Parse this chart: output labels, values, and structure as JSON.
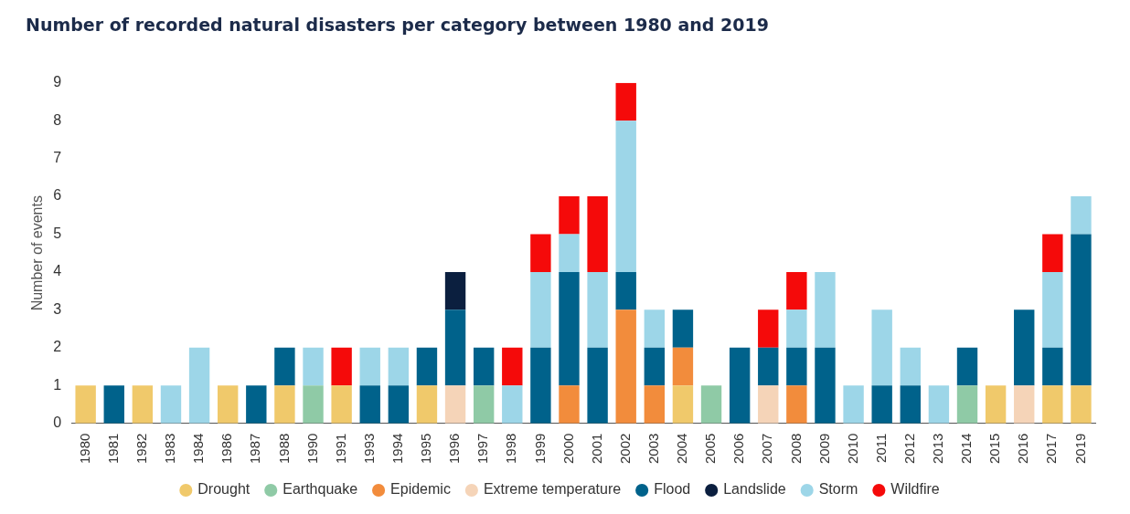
{
  "chart_data": {
    "type": "bar",
    "title": "Number of recorded natural disasters per category between 1980 and 2019",
    "ylabel": "Number of events",
    "stacked": true,
    "legend": "bottom",
    "grid": false,
    "categories": [
      "1980",
      "1981",
      "1982",
      "1983",
      "1984",
      "1986",
      "1987",
      "1988",
      "1990",
      "1991",
      "1993",
      "1994",
      "1995",
      "1996",
      "1997",
      "1998",
      "1999",
      "2000",
      "2001",
      "2002",
      "2003",
      "2004",
      "2005",
      "2006",
      "2007",
      "2008",
      "2009",
      "2010",
      "2011",
      "2012",
      "2013",
      "2014",
      "2015",
      "2016",
      "2017",
      "2019"
    ],
    "ylim": [
      0,
      9
    ],
    "yticks": [
      0,
      1,
      2,
      3,
      4,
      5,
      6,
      7,
      8,
      9
    ],
    "series": [
      {
        "name": "Drought",
        "color": "#f0c96b",
        "values": [
          1,
          0,
          1,
          0,
          0,
          1,
          0,
          1,
          0,
          1,
          0,
          0,
          1,
          0,
          0,
          0,
          0,
          0,
          0,
          0,
          0,
          1,
          0,
          0,
          0,
          0,
          0,
          0,
          0,
          0,
          0,
          0,
          1,
          0,
          1,
          1
        ]
      },
      {
        "name": "Earthquake",
        "color": "#8fcaa6",
        "values": [
          0,
          0,
          0,
          0,
          0,
          0,
          0,
          0,
          1,
          0,
          0,
          0,
          0,
          0,
          1,
          0,
          0,
          0,
          0,
          0,
          0,
          0,
          1,
          0,
          0,
          0,
          0,
          0,
          0,
          0,
          0,
          1,
          0,
          0,
          0,
          0
        ]
      },
      {
        "name": "Epidemic",
        "color": "#f28c3c",
        "values": [
          0,
          0,
          0,
          0,
          0,
          0,
          0,
          0,
          0,
          0,
          0,
          0,
          0,
          0,
          0,
          0,
          0,
          1,
          0,
          3,
          1,
          1,
          0,
          0,
          0,
          1,
          0,
          0,
          0,
          0,
          0,
          0,
          0,
          0,
          0,
          0
        ]
      },
      {
        "name": "Extreme temperature",
        "color": "#f5d4b8",
        "values": [
          0,
          0,
          0,
          0,
          0,
          0,
          0,
          0,
          0,
          0,
          0,
          0,
          0,
          1,
          0,
          0,
          0,
          0,
          0,
          0,
          0,
          0,
          0,
          0,
          1,
          0,
          0,
          0,
          0,
          0,
          0,
          0,
          0,
          1,
          0,
          0
        ]
      },
      {
        "name": "Flood",
        "color": "#00628b",
        "values": [
          0,
          1,
          0,
          0,
          0,
          0,
          1,
          1,
          0,
          0,
          1,
          1,
          1,
          2,
          1,
          0,
          2,
          3,
          2,
          1,
          1,
          1,
          0,
          2,
          1,
          1,
          2,
          0,
          1,
          1,
          0,
          1,
          0,
          2,
          1,
          4
        ]
      },
      {
        "name": "Landslide",
        "color": "#0b1f3f",
        "values": [
          0,
          0,
          0,
          0,
          0,
          0,
          0,
          0,
          0,
          0,
          0,
          0,
          0,
          1,
          0,
          0,
          0,
          0,
          0,
          0,
          0,
          0,
          0,
          0,
          0,
          0,
          0,
          0,
          0,
          0,
          0,
          0,
          0,
          0,
          0,
          0
        ]
      },
      {
        "name": "Storm",
        "color": "#9dd6e8",
        "values": [
          0,
          0,
          0,
          1,
          2,
          0,
          0,
          0,
          1,
          0,
          1,
          1,
          0,
          0,
          0,
          1,
          2,
          1,
          2,
          4,
          1,
          0,
          0,
          0,
          0,
          1,
          2,
          1,
          2,
          1,
          1,
          0,
          0,
          0,
          2,
          1
        ]
      },
      {
        "name": "Wildfire",
        "color": "#f50a0a",
        "values": [
          0,
          0,
          0,
          0,
          0,
          0,
          0,
          0,
          0,
          1,
          0,
          0,
          0,
          0,
          0,
          1,
          1,
          1,
          2,
          1,
          0,
          0,
          0,
          0,
          1,
          1,
          0,
          0,
          0,
          0,
          0,
          0,
          0,
          0,
          1,
          0
        ]
      }
    ]
  }
}
